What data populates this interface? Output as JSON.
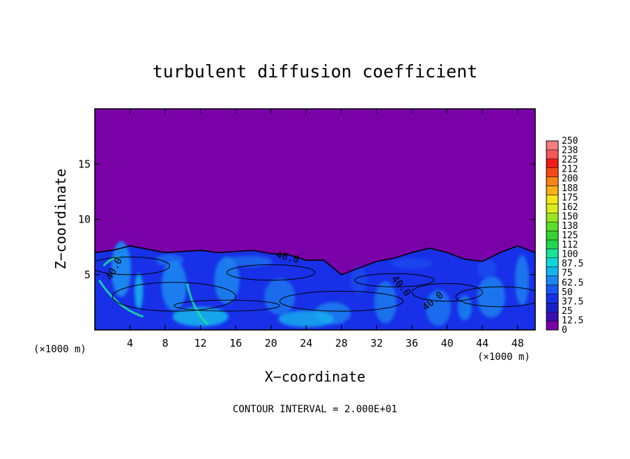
{
  "chart_data": {
    "type": "heatmap",
    "title": "turbulent diffusion coefficient",
    "xlabel": "X−coordinate",
    "ylabel": "Z−coordinate",
    "x_unit": "(×1000 m)",
    "y_unit": "(×1000 m)",
    "xlim": [
      0,
      50
    ],
    "ylim": [
      0,
      20
    ],
    "x_ticks": [
      4,
      8,
      12,
      16,
      20,
      24,
      28,
      32,
      36,
      40,
      44,
      48
    ],
    "y_ticks": [
      5,
      10,
      15
    ],
    "background_value": 0,
    "background_color": "#7a00a8",
    "colorbar": {
      "levels": [
        "0",
        "12.5",
        "25",
        "37.5",
        "50",
        "62.5",
        "75",
        "87.5",
        "100",
        "112",
        "125",
        "138",
        "150",
        "162",
        "175",
        "188",
        "200",
        "212",
        "225",
        "238",
        "250"
      ],
      "colors": [
        "#7a00a8",
        "#3a0fb0",
        "#1a20c8",
        "#1830e8",
        "#1c56f0",
        "#1c86f0",
        "#17b2ee",
        "#10d8d8",
        "#16e49a",
        "#20d84e",
        "#36d236",
        "#5ade2a",
        "#9ae622",
        "#d8ec1e",
        "#f4e41a",
        "#f8b018",
        "#f88418",
        "#f84818",
        "#f01c18",
        "#f45a5a",
        "#f47e7e"
      ]
    },
    "boundary_layer_top": [
      {
        "x": 0,
        "z": 7.0
      },
      {
        "x": 2,
        "z": 7.2
      },
      {
        "x": 4,
        "z": 7.6
      },
      {
        "x": 6,
        "z": 7.3
      },
      {
        "x": 8,
        "z": 7.0
      },
      {
        "x": 10,
        "z": 7.1
      },
      {
        "x": 12,
        "z": 7.2
      },
      {
        "x": 14,
        "z": 7.0
      },
      {
        "x": 16,
        "z": 7.1
      },
      {
        "x": 18,
        "z": 7.2
      },
      {
        "x": 20,
        "z": 6.9
      },
      {
        "x": 22,
        "z": 6.8
      },
      {
        "x": 24,
        "z": 6.3
      },
      {
        "x": 26,
        "z": 6.3
      },
      {
        "x": 28,
        "z": 5.0
      },
      {
        "x": 30,
        "z": 5.6
      },
      {
        "x": 32,
        "z": 6.2
      },
      {
        "x": 34,
        "z": 6.5
      },
      {
        "x": 36,
        "z": 7.0
      },
      {
        "x": 38,
        "z": 7.4
      },
      {
        "x": 40,
        "z": 7.0
      },
      {
        "x": 42,
        "z": 6.4
      },
      {
        "x": 44,
        "z": 6.2
      },
      {
        "x": 46,
        "z": 7.0
      },
      {
        "x": 48,
        "z": 7.6
      },
      {
        "x": 50,
        "z": 7.0
      }
    ],
    "contour_labels": [
      {
        "text": "40.0",
        "x": 21.8,
        "z": 6.3,
        "angle": 14
      },
      {
        "text": "40.0",
        "x": 2.5,
        "z": 5.4,
        "angle": -62
      },
      {
        "text": "40.0",
        "x": 34.5,
        "z": 3.8,
        "angle": 50
      },
      {
        "text": "40.0",
        "x": 38.6,
        "z": 2.4,
        "angle": -40
      }
    ],
    "footer": "CONTOUR INTERVAL = 2.000E+01"
  }
}
